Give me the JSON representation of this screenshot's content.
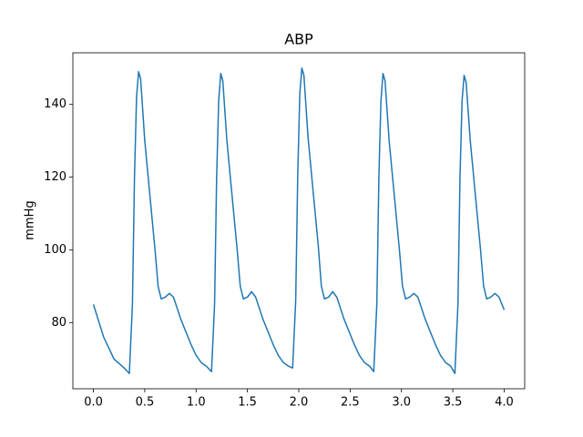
{
  "chart_data": {
    "type": "line",
    "title": "ABP",
    "y_label": "mmHg",
    "x": [
      0.0,
      0.1,
      0.2,
      0.3,
      0.35,
      0.38,
      0.4,
      0.42,
      0.44,
      0.46,
      0.5,
      0.55,
      0.6,
      0.63,
      0.66,
      0.7,
      0.74,
      0.78,
      0.85,
      0.95,
      1.0,
      1.05,
      1.1,
      1.15,
      1.18,
      1.2,
      1.22,
      1.24,
      1.26,
      1.3,
      1.35,
      1.4,
      1.43,
      1.46,
      1.5,
      1.54,
      1.58,
      1.65,
      1.75,
      1.8,
      1.85,
      1.9,
      1.94,
      1.97,
      1.99,
      2.01,
      2.03,
      2.05,
      2.09,
      2.14,
      2.19,
      2.22,
      2.25,
      2.29,
      2.33,
      2.37,
      2.44,
      2.54,
      2.59,
      2.64,
      2.69,
      2.73,
      2.76,
      2.78,
      2.8,
      2.82,
      2.84,
      2.88,
      2.93,
      2.98,
      3.01,
      3.04,
      3.08,
      3.12,
      3.16,
      3.23,
      3.33,
      3.38,
      3.43,
      3.48,
      3.52,
      3.55,
      3.57,
      3.59,
      3.61,
      3.63,
      3.67,
      3.72,
      3.77,
      3.8,
      3.83,
      3.87,
      3.91,
      3.95,
      4.0
    ],
    "series": [
      {
        "name": "ABP",
        "color": "#1f77b4",
        "values": [
          85,
          76,
          70,
          67.5,
          66,
          85,
          120,
          142,
          149,
          147,
          130,
          115,
          100,
          90,
          86.5,
          87,
          88,
          87,
          81,
          74,
          71,
          69,
          68,
          66.5,
          85,
          120,
          141,
          148.5,
          146.5,
          130,
          115,
          100,
          90,
          86.5,
          87,
          88.5,
          87,
          81,
          74,
          71,
          69,
          68,
          67.5,
          86,
          121,
          143,
          150,
          148,
          131,
          116,
          101,
          90,
          86.5,
          87,
          88.5,
          87,
          81,
          74,
          71,
          69,
          68,
          66.5,
          85,
          120,
          141,
          148.5,
          146.5,
          130,
          115,
          100,
          90,
          86.5,
          87,
          88,
          87,
          81,
          74,
          71,
          69,
          68,
          66,
          85,
          120,
          141,
          148,
          146,
          130,
          115,
          100,
          90,
          86.5,
          87,
          88,
          87,
          83.5
        ]
      }
    ],
    "xlim": [
      -0.2,
      4.2
    ],
    "ylim": [
      61.8,
      154.2
    ],
    "xticks": [
      {
        "value": 0,
        "label": "0.0"
      },
      {
        "value": 0.5,
        "label": "0.5"
      },
      {
        "value": 1,
        "label": "1.0"
      },
      {
        "value": 1.5,
        "label": "1.5"
      },
      {
        "value": 2,
        "label": "2.0"
      },
      {
        "value": 2.5,
        "label": "2.5"
      },
      {
        "value": 3,
        "label": "3.0"
      },
      {
        "value": 3.5,
        "label": "3.5"
      },
      {
        "value": 4,
        "label": "4.0"
      }
    ],
    "yticks": [
      80,
      100,
      120,
      140
    ],
    "grid": false
  }
}
